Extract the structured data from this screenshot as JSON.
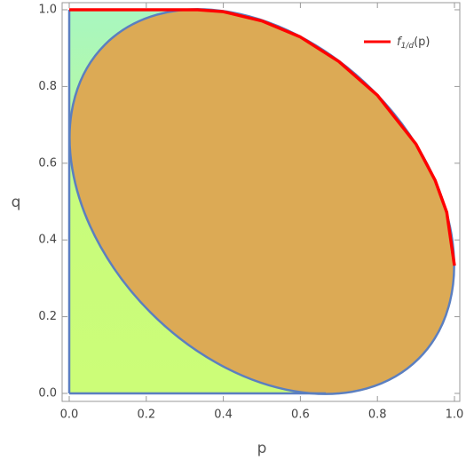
{
  "chart_data": {
    "type": "line",
    "x_label": "p",
    "y_label": "q",
    "x": [
      0,
      0.333,
      0.4,
      0.5,
      0.6,
      0.7,
      0.8,
      0.9,
      0.95,
      0.98,
      1.0
    ],
    "series": [
      {
        "name": [
          "f",
          "1/d",
          "(p)"
        ],
        "color": "#ff0000",
        "values": [
          1,
          1,
          0.995,
          0.971,
          0.929,
          0.865,
          0.777,
          0.65,
          0.555,
          0.472,
          0.333
        ]
      }
    ],
    "xlim": [
      0,
      1
    ],
    "ylim": [
      0,
      1
    ],
    "xticks": [
      {
        "value": 0,
        "label": "0.0"
      },
      0.2,
      0.4,
      0.6,
      0.8,
      {
        "value": 1,
        "label": "1.0"
      }
    ],
    "yticks": [
      {
        "value": 0,
        "label": "0.0"
      },
      0.2,
      0.4,
      0.6,
      0.8,
      {
        "value": 1,
        "label": "1.0"
      }
    ],
    "legend": "top-right"
  }
}
